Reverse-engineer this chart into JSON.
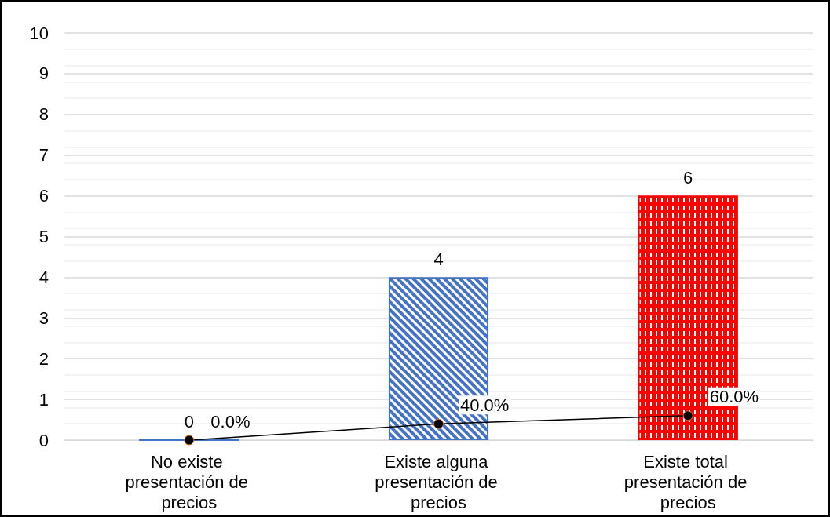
{
  "chart_data": {
    "type": "bar",
    "categories": [
      "No existe presentación de precios",
      "Existe alguna presentación de precios",
      "Existe total presentación de precios"
    ],
    "series": [
      {
        "values": [
          0,
          4,
          6
        ],
        "colors": [
          "#4472c4",
          "#4472c4",
          "#ff0000"
        ],
        "value_labels": [
          "0",
          "4",
          "6"
        ]
      },
      {
        "type": "line",
        "color": "#000000",
        "values": [
          0,
          0.4,
          0.6
        ],
        "value_labels": [
          "0.0%",
          "40.0%",
          "60.0%"
        ],
        "marker": "circle"
      }
    ],
    "ylim": [
      0,
      10
    ],
    "yticks": [
      0,
      1,
      2,
      3,
      4,
      5,
      6,
      7,
      8,
      9,
      10
    ],
    "grid": true
  }
}
